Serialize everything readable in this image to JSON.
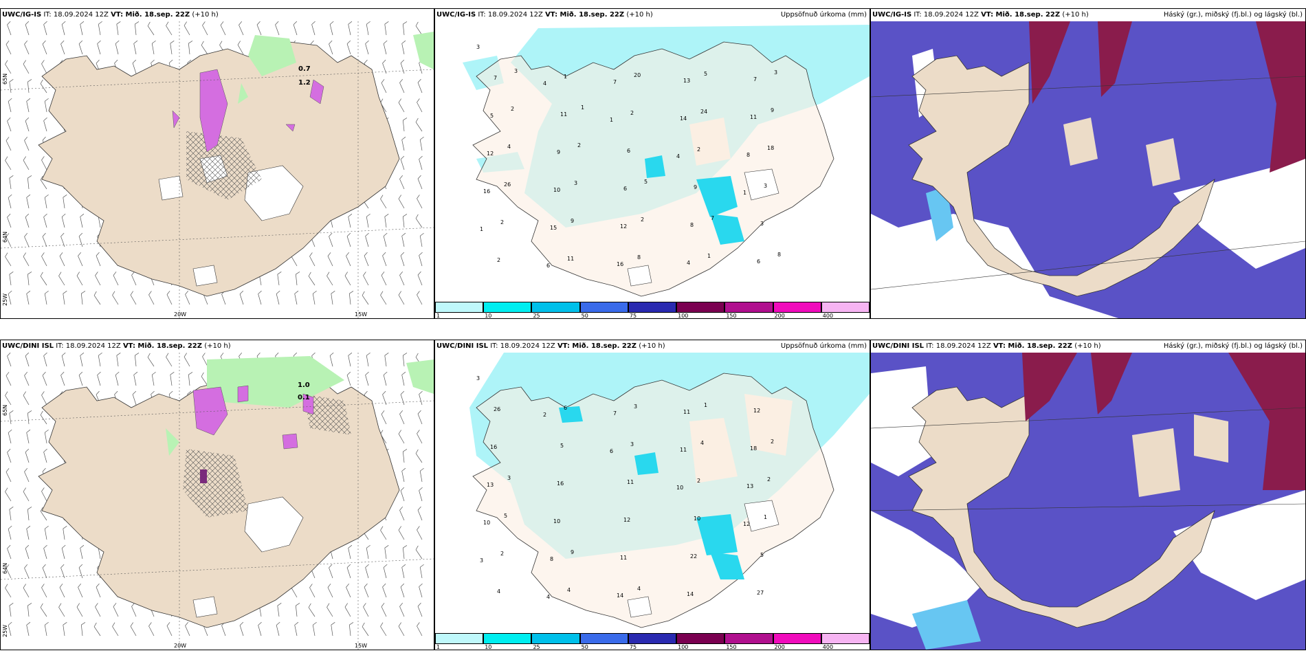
{
  "rows": [
    {
      "id": "top",
      "model": "UWC/IG-IS",
      "it": "IT: 18.09.2024 12Z",
      "vt": "VT: Mið. 18.sep. 22Z",
      "lead": "(+10 h)"
    },
    {
      "id": "bottom",
      "model": "UWC/DINI ISL",
      "it": "IT: 18.09.2024 12Z",
      "vt": "VT: Mið. 18.sep. 22Z",
      "lead": "(+10 h)"
    }
  ],
  "precip_panel_title": "Uppsöfnuð úrkoma (mm)",
  "cloud_panel_title": "Háský (gr.), miðský (fj.bl.) og lágský (bl.)",
  "wind_panel": {
    "lon_labels": [
      "20W",
      "15W"
    ],
    "lat_labels": [
      "65N",
      "64N",
      "25W"
    ],
    "top_values": [
      "0.7",
      "1.2"
    ],
    "bottom_values": [
      "1.0",
      "0.1"
    ]
  },
  "precip_legend": {
    "labels": [
      "1",
      "10",
      "25",
      "50",
      "75",
      "100",
      "150",
      "200",
      "400"
    ],
    "colors": [
      "#bff8fb",
      "#00eef0",
      "#00c0ea",
      "#3a6bea",
      "#2a2ab0",
      "#7a0050",
      "#b0108e",
      "#f00cbc",
      "#f6b4f2"
    ]
  },
  "precip_values_top": [
    "3",
    "4",
    "1",
    "4",
    "1",
    "1",
    "6",
    "7",
    "14",
    "8",
    "16",
    "15",
    "16",
    "13",
    "11",
    "12",
    "10",
    "12",
    "4",
    "7",
    "5",
    "9",
    "6",
    "8",
    "6",
    "7",
    "11",
    "6",
    "9",
    "3",
    "2",
    "1",
    "2",
    "2",
    "3",
    "2",
    "11",
    "20",
    "24",
    "18",
    "26",
    "9",
    "8",
    "5",
    "9",
    "4",
    "3",
    "2",
    "1",
    "3",
    "2",
    "2",
    "5",
    "7",
    "8",
    "3",
    "1"
  ],
  "precip_values_bottom": [
    "3",
    "2",
    "6",
    "10",
    "12",
    "3",
    "4",
    "7",
    "11",
    "13",
    "10",
    "8",
    "14",
    "11",
    "18",
    "13",
    "10",
    "11",
    "14",
    "12",
    "16",
    "16",
    "12",
    "22",
    "27",
    "26",
    "5",
    "11",
    "10",
    "5",
    "4",
    "6",
    "3",
    "2",
    "1",
    "2",
    "4",
    "3",
    "4",
    "2",
    "5",
    "9",
    "4",
    "1",
    "2",
    "3"
  ],
  "colors": {
    "land": "#ecdcc8",
    "precip_land": "#fbefe3",
    "light_cyan": "#aef4f8",
    "cyan": "#29d8ee",
    "green": "#b8f2b4",
    "magenta": "#d46ee0",
    "cloud_low": "#5a52c6",
    "cloud_high": "#8a1c4c",
    "cloud_light": "#67c6f2"
  }
}
